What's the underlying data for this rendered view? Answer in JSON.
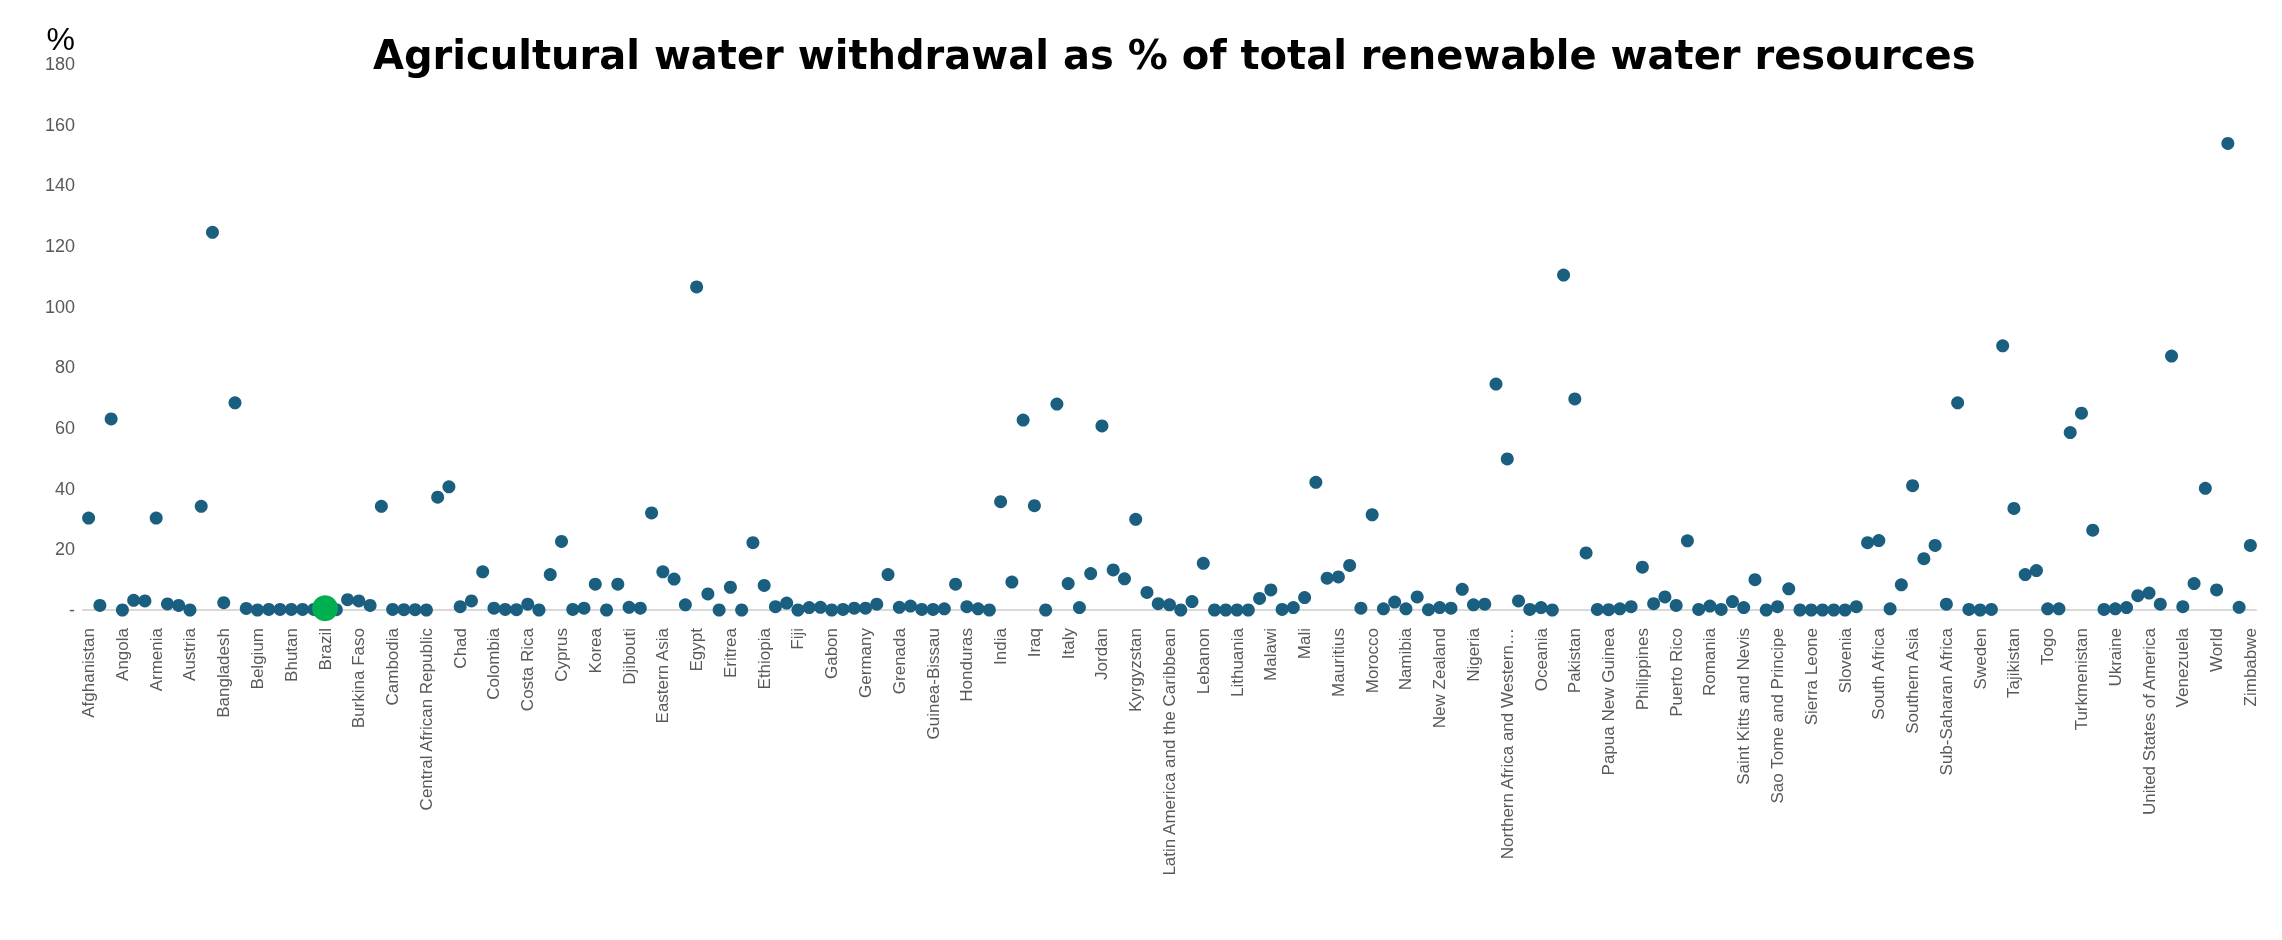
{
  "chart_data": {
    "type": "scatter",
    "title": "Agricultural water withdrawal as % of total renewable water resources",
    "ylabel": "%",
    "marker": "circle",
    "grid": false,
    "categories": [
      "Afghanistan",
      null,
      null,
      "Angola",
      null,
      null,
      "Armenia",
      null,
      null,
      "Austria",
      null,
      null,
      "Bangladesh",
      null,
      null,
      "Belgium",
      null,
      null,
      "Bhutan",
      null,
      null,
      "Brazil",
      null,
      null,
      "Burkina Faso",
      null,
      null,
      "Cambodia",
      null,
      null,
      "Central African Republic",
      null,
      null,
      "Chad",
      null,
      null,
      "Colombia",
      null,
      null,
      "Costa Rica",
      null,
      null,
      "Cyprus",
      null,
      null,
      "Korea",
      null,
      null,
      "Djibouti",
      null,
      null,
      "Eastern Asia",
      null,
      null,
      "Egypt",
      null,
      null,
      "Eritrea",
      null,
      null,
      "Ethiopia",
      null,
      null,
      "Fiji",
      null,
      null,
      "Gabon",
      null,
      null,
      "Germany",
      null,
      null,
      "Grenada",
      null,
      null,
      "Guinea-Bissau",
      null,
      null,
      "Honduras",
      null,
      null,
      "India",
      null,
      null,
      "Iraq",
      null,
      null,
      "Italy",
      null,
      null,
      "Jordan",
      null,
      null,
      "Kyrgyzstan",
      null,
      null,
      "Latin America and the Caribbean",
      null,
      null,
      "Lebanon",
      null,
      null,
      "Lithuania",
      null,
      null,
      "Malawi",
      null,
      null,
      "Mali",
      null,
      null,
      "Mauritius",
      null,
      null,
      "Morocco",
      null,
      null,
      "Namibia",
      null,
      null,
      "New Zealand",
      null,
      null,
      "Nigeria",
      null,
      null,
      "Northern Africa and Western…",
      null,
      null,
      "Oceania",
      null,
      null,
      "Pakistan",
      null,
      null,
      "Papua New Guinea",
      null,
      null,
      "Philippines",
      null,
      null,
      "Puerto Rico",
      null,
      null,
      "Romania",
      null,
      null,
      "Saint Kitts and Nevis",
      null,
      null,
      "Sao Tome and Principe",
      null,
      null,
      "Sierra Leone",
      null,
      null,
      "Slovenia",
      null,
      null,
      "South Africa",
      null,
      null,
      "Southern Asia",
      null,
      null,
      "Sub-Saharan Africa",
      null,
      null,
      "Sweden",
      null,
      null,
      "Tajikistan",
      null,
      null,
      "Togo",
      null,
      null,
      "Turkmenistan",
      null,
      null,
      "Ukraine",
      null,
      null,
      "United States of America",
      null,
      null,
      "Venezuela",
      null,
      null,
      "World",
      null,
      null,
      "Zimbabwe"
    ],
    "ylim": [
      0,
      180
    ],
    "yticks": [
      {
        "value": 0,
        "label": "-"
      },
      20,
      40,
      60,
      80,
      100,
      120,
      140,
      160,
      180
    ],
    "series": [
      {
        "color": "#1a5e80",
        "values": [
          30.3,
          1.5,
          63,
          0,
          3.2,
          3,
          30.3,
          2,
          1.5,
          0,
          34.2,
          124.5,
          2.4,
          68.3,
          0.5,
          0,
          0.2,
          0.2,
          0.2,
          0.2,
          0.2,
          null,
          0.1,
          3.4,
          3,
          1.5,
          34.2,
          0.2,
          0.1,
          0.1,
          0,
          37.2,
          40.6,
          1.1,
          3,
          12.6,
          0.6,
          0.2,
          0.1,
          1.9,
          0,
          11.7,
          22.6,
          0.2,
          0.6,
          8.5,
          0,
          8.5,
          0.9,
          0.6,
          32,
          12.6,
          10.2,
          1.7,
          106.5,
          5.3,
          0,
          7.5,
          0,
          22.2,
          8.1,
          1.1,
          2.3,
          0,
          0.8,
          0.9,
          0,
          0.2,
          0.6,
          0.6,
          1.9,
          11.7,
          0.9,
          1.3,
          0.2,
          0.2,
          0.4,
          8.5,
          1.1,
          0.4,
          0,
          35.7,
          9.2,
          62.6,
          34.4,
          0,
          67.9,
          8.7,
          0.8,
          12,
          60.7,
          13.2,
          10.3,
          29.9,
          5.8,
          2.1,
          1.7,
          0,
          2.8,
          15.4,
          0,
          0,
          0,
          0,
          3.8,
          6.6,
          0.2,
          0.8,
          4.1,
          42.1,
          10.5,
          10.9,
          14.7,
          0.6,
          31.4,
          0.4,
          2.6,
          0.4,
          4.3,
          0.1,
          0.8,
          0.6,
          6.8,
          1.7,
          1.9,
          74.5,
          49.8,
          3,
          0.2,
          0.8,
          0,
          110.4,
          69.6,
          18.8,
          0.2,
          0.1,
          0.4,
          1.1,
          14.1,
          2.1,
          4.3,
          1.5,
          22.8,
          0.2,
          1.3,
          0.2,
          2.8,
          0.8,
          10,
          0,
          1.1,
          7,
          0,
          0,
          0,
          0,
          0,
          1.1,
          22.2,
          22.9,
          0.4,
          8.3,
          41,
          16.9,
          21.3,
          1.9,
          68.3,
          0.2,
          0,
          0.2,
          87.1,
          33.5,
          11.7,
          13,
          0.4,
          0.4,
          58.5,
          64.9,
          26.3,
          0.2,
          0.4,
          0.8,
          4.7,
          5.6,
          1.9,
          83.7,
          1.1,
          8.7,
          40.1,
          6.6,
          153.8,
          0.9,
          21.3
        ]
      },
      {
        "color": "#00b050",
        "x": [
          "Brazil"
        ],
        "values": [
          0.6
        ]
      }
    ]
  }
}
